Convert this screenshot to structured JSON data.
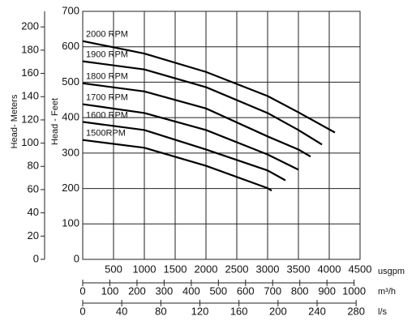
{
  "chart_data": {
    "type": "line",
    "ylabel": "Head - Feet",
    "y2label": "Head- Meters",
    "xlabel": "usgpm",
    "xlim": [
      0,
      4500
    ],
    "xticks": [
      500,
      1000,
      1500,
      2000,
      2500,
      3000,
      3500,
      4000,
      4500
    ],
    "ylim": [
      0,
      700
    ],
    "yticks": [
      0,
      100,
      200,
      300,
      400,
      500,
      600,
      700
    ],
    "y2lim": [
      0,
      213.4
    ],
    "y2ticks": [
      0,
      20,
      40,
      60,
      80,
      100,
      120,
      140,
      160,
      180,
      200
    ],
    "x2label": "m³/h",
    "x2lim": [
      0,
      1022
    ],
    "x2ticks": [
      0,
      100,
      200,
      300,
      400,
      500,
      600,
      700,
      800,
      900,
      1000
    ],
    "x3label": "l/s",
    "x3lim": [
      0,
      284
    ],
    "x3ticks": [
      0,
      40,
      80,
      120,
      160,
      200,
      240,
      280
    ],
    "grid": true,
    "series": [
      {
        "name": "2000 RPM",
        "color": "#000000",
        "x": [
          0,
          1000,
          2000,
          3000,
          3500,
          4092
        ],
        "values": [
          616,
          581,
          529,
          461,
          415,
          358
        ]
      },
      {
        "name": "1900 RPM",
        "color": "#000000",
        "x": [
          0,
          1000,
          2000,
          3000,
          3500,
          3882
        ],
        "values": [
          559,
          536,
          486,
          413,
          365,
          324
        ]
      },
      {
        "name": "1800 RPM",
        "color": "#000000",
        "x": [
          0,
          1000,
          2000,
          3000,
          3500,
          3697
        ],
        "values": [
          497,
          474,
          426,
          347,
          310,
          290
        ]
      },
      {
        "name": "1700 RPM",
        "color": "#000000",
        "x": [
          0,
          1000,
          2000,
          3000,
          3500
        ],
        "values": [
          438,
          413,
          365,
          296,
          253
        ]
      },
      {
        "name": "1600 RPM",
        "color": "#000000",
        "x": [
          0,
          1000,
          2000,
          3000,
          3289
        ],
        "values": [
          388,
          365,
          310,
          251,
          223
        ]
      },
      {
        "name": "1500RPM",
        "color": "#000000",
        "x": [
          0,
          1000,
          2000,
          3000,
          3066
        ],
        "values": [
          337,
          315,
          264,
          201,
          194
        ]
      }
    ]
  }
}
